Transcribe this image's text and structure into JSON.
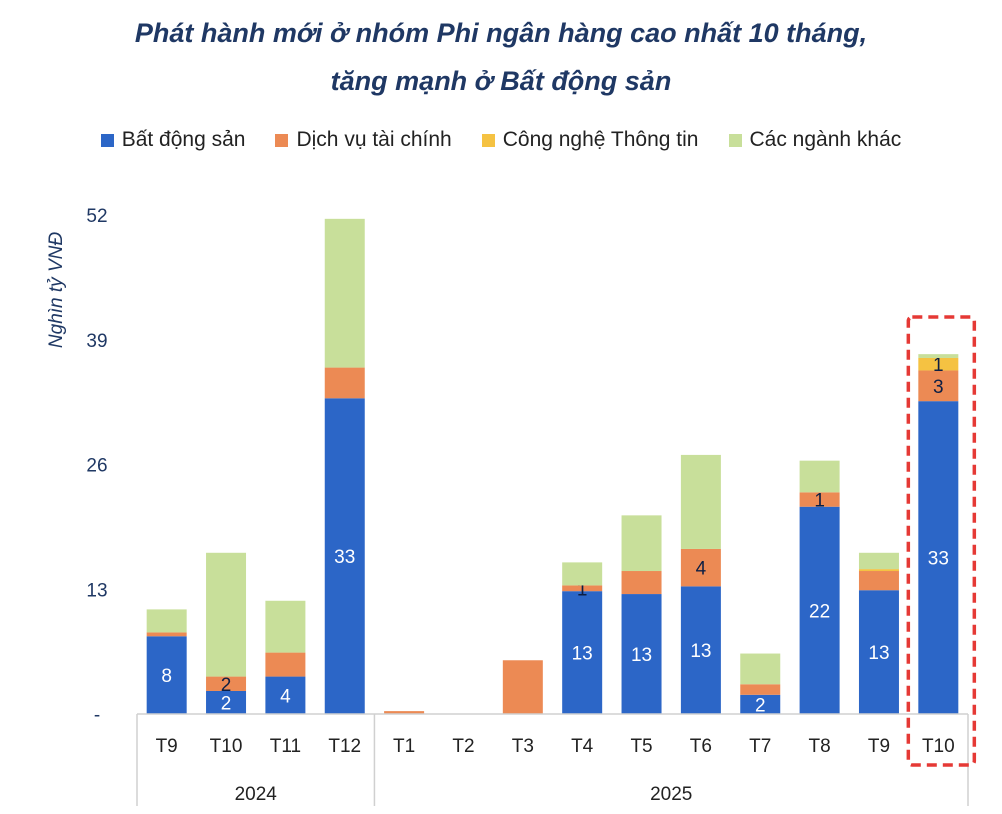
{
  "chart_data": {
    "type": "bar",
    "stacked": true,
    "title": "Phát hành mới ở nhóm Phi ngân hàng cao nhất 10 tháng,",
    "subtitle": "tăng mạnh ở Bất động sản",
    "ylabel": "Nghìn tỷ VNĐ",
    "ylim": [
      0,
      52
    ],
    "yticks": [
      "-",
      "13",
      "26",
      "39",
      "52"
    ],
    "ytick_values": [
      0,
      13,
      26,
      39,
      52
    ],
    "grid": false,
    "legend_position": "top",
    "groups": [
      {
        "label": "2024",
        "categories": [
          "T9",
          "T10",
          "T11",
          "T12"
        ]
      },
      {
        "label": "2025",
        "categories": [
          "T1",
          "T2",
          "T3",
          "T4",
          "T5",
          "T6",
          "T7",
          "T8",
          "T9",
          "T10"
        ]
      }
    ],
    "categories": [
      "T9",
      "T10",
      "T11",
      "T12",
      "T1",
      "T2",
      "T3",
      "T4",
      "T5",
      "T6",
      "T7",
      "T8",
      "T9",
      "T10"
    ],
    "series": [
      {
        "name": "Bất động sản",
        "color": "#2c66c7",
        "values": [
          8.1,
          2.4,
          3.9,
          32.9,
          0,
          0,
          0,
          12.8,
          12.5,
          13.3,
          2.0,
          21.6,
          12.9,
          32.6
        ],
        "labels": [
          "8",
          "2",
          "4",
          "33",
          null,
          null,
          null,
          "13",
          "13",
          "13",
          "2",
          "22",
          "13",
          "33"
        ]
      },
      {
        "name": "Dịch vụ tài chính",
        "color": "#ec8a54",
        "values": [
          0.4,
          1.5,
          2.5,
          3.2,
          0.3,
          0,
          5.6,
          0.6,
          2.4,
          3.9,
          1.1,
          1.5,
          2.0,
          3.2
        ],
        "labels": [
          null,
          "2",
          null,
          null,
          null,
          null,
          null,
          "1",
          null,
          "4",
          null,
          "1",
          null,
          "3"
        ]
      },
      {
        "name": "Công nghệ Thông tin",
        "color": "#f5c242",
        "values": [
          0,
          0,
          0,
          0,
          0,
          0,
          0,
          0,
          0,
          0,
          0,
          0,
          0.2,
          1.3
        ],
        "labels": [
          null,
          null,
          null,
          null,
          null,
          null,
          null,
          null,
          null,
          null,
          null,
          null,
          null,
          "1"
        ]
      },
      {
        "name": "Các ngành khác",
        "color": "#c8df9a",
        "values": [
          2.4,
          12.9,
          5.4,
          15.5,
          0,
          0,
          0,
          2.4,
          5.8,
          9.8,
          3.2,
          3.3,
          1.7,
          0.4
        ],
        "labels": [
          null,
          null,
          null,
          null,
          null,
          null,
          null,
          null,
          null,
          null,
          null,
          null,
          null,
          null
        ]
      }
    ],
    "highlight": {
      "category_index": 13,
      "color": "#e53935",
      "style": "dashed"
    }
  }
}
